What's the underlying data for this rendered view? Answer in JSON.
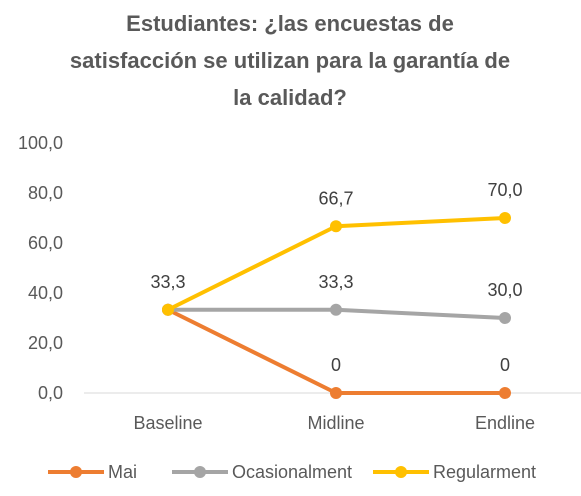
{
  "chart_data": {
    "type": "line",
    "title": [
      "Estudiantes: ¿las encuestas de",
      "satisfacción se utilizan para la garantía de",
      "la calidad?"
    ],
    "categories": [
      "Baseline",
      "Midline",
      "Endline"
    ],
    "ylim": [
      0,
      100
    ],
    "yticks": [
      "0,0",
      "20,0",
      "40,0",
      "60,0",
      "80,0",
      "100,0"
    ],
    "grid": false,
    "legend_position": "bottom",
    "series": [
      {
        "name": "Mai",
        "color": "#ED7D31",
        "values": [
          33.3,
          0,
          0
        ],
        "labels": [
          "",
          "0",
          "0"
        ]
      },
      {
        "name": "Ocasionalment",
        "color": "#A5A5A5",
        "values": [
          33.3,
          33.3,
          30.0
        ],
        "labels": [
          "",
          "33,3",
          "30,0"
        ]
      },
      {
        "name": "Regularment",
        "color": "#FFC000",
        "values": [
          33.3,
          66.7,
          70.0
        ],
        "labels": [
          "33,3",
          "66,7",
          "70,0"
        ]
      }
    ]
  }
}
